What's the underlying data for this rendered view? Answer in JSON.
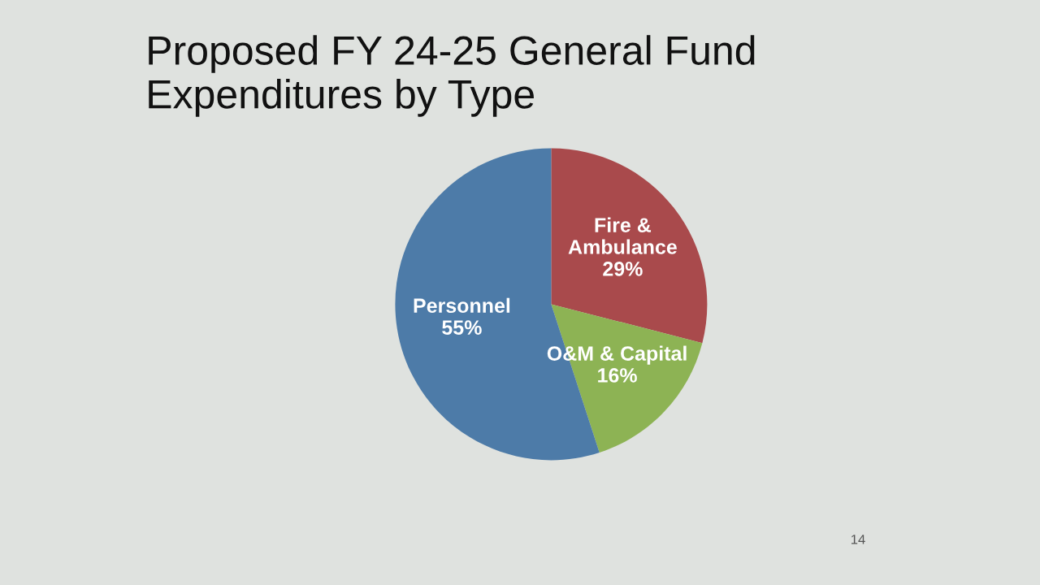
{
  "chart_data": {
    "type": "pie",
    "title": "Proposed FY 24-25 General Fund\nExpenditures by Type",
    "categories": [
      "Fire &\nAmbulance",
      "O&M & Capital",
      "Personnel"
    ],
    "values": [
      29,
      16,
      55
    ],
    "colors": [
      "#a94a4c",
      "#8db354",
      "#4d7ba8"
    ],
    "value_labels": [
      "29%",
      "16%",
      "55%"
    ],
    "annotations": [
      "14"
    ]
  }
}
